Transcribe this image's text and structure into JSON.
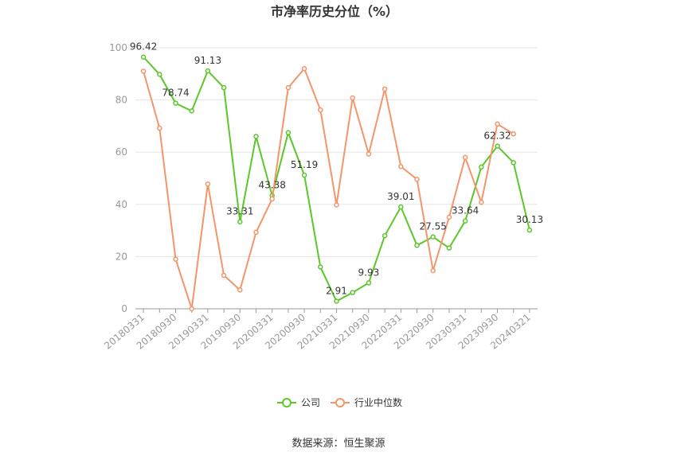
{
  "chart_data": {
    "type": "line",
    "title": "市净率历史分位（%）",
    "x": [
      "20180331",
      "20180630",
      "20180930",
      "20181231",
      "20190331",
      "20190630",
      "20190930",
      "20191231",
      "20200331",
      "20200630",
      "20200930",
      "20201231",
      "20210331",
      "20210630",
      "20210930",
      "20211231",
      "20220331",
      "20220630",
      "20220930",
      "20221231",
      "20230331",
      "20230630",
      "20230930",
      "20231231",
      "20240321"
    ],
    "x_tick_labels": [
      "20180331",
      "20180930",
      "20190331",
      "20190930",
      "20200331",
      "20200930",
      "20210331",
      "20210930",
      "20220331",
      "20220930",
      "20230331",
      "20230930",
      "20240321"
    ],
    "ylim": [
      0,
      100
    ],
    "y_ticks": [
      0,
      20,
      40,
      60,
      80,
      100
    ],
    "grid": true,
    "legend_position": "bottom",
    "series": [
      {
        "name": "公司",
        "color": "#5cc72a",
        "values": [
          96.42,
          89.8,
          78.74,
          75.8,
          91.13,
          84.7,
          33.31,
          66.0,
          43.38,
          67.5,
          51.19,
          16.0,
          2.91,
          6.2,
          9.93,
          28.0,
          39.01,
          24.3,
          27.55,
          23.3,
          33.64,
          54.3,
          62.32,
          56.0,
          30.13
        ],
        "labels": {
          "0": "96.42",
          "2": "78.74",
          "4": "91.13",
          "6": "33.31",
          "8": "43.38",
          "10": "51.19",
          "12": "2.91",
          "14": "9.93",
          "16": "39.01",
          "18": "27.55",
          "20": "33.64",
          "22": "62.32",
          "24": "30.13"
        }
      },
      {
        "name": "行业中位数",
        "color": "#f4956a",
        "values": [
          91.0,
          69.2,
          19.0,
          0.0,
          47.8,
          12.8,
          7.2,
          29.3,
          42.1,
          84.7,
          92.0,
          76.2,
          39.8,
          80.8,
          59.3,
          84.2,
          54.5,
          49.6,
          14.6,
          35.1,
          58.0,
          40.8,
          70.8,
          67.0,
          null
        ]
      }
    ]
  },
  "source": "数据来源：恒生聚源"
}
